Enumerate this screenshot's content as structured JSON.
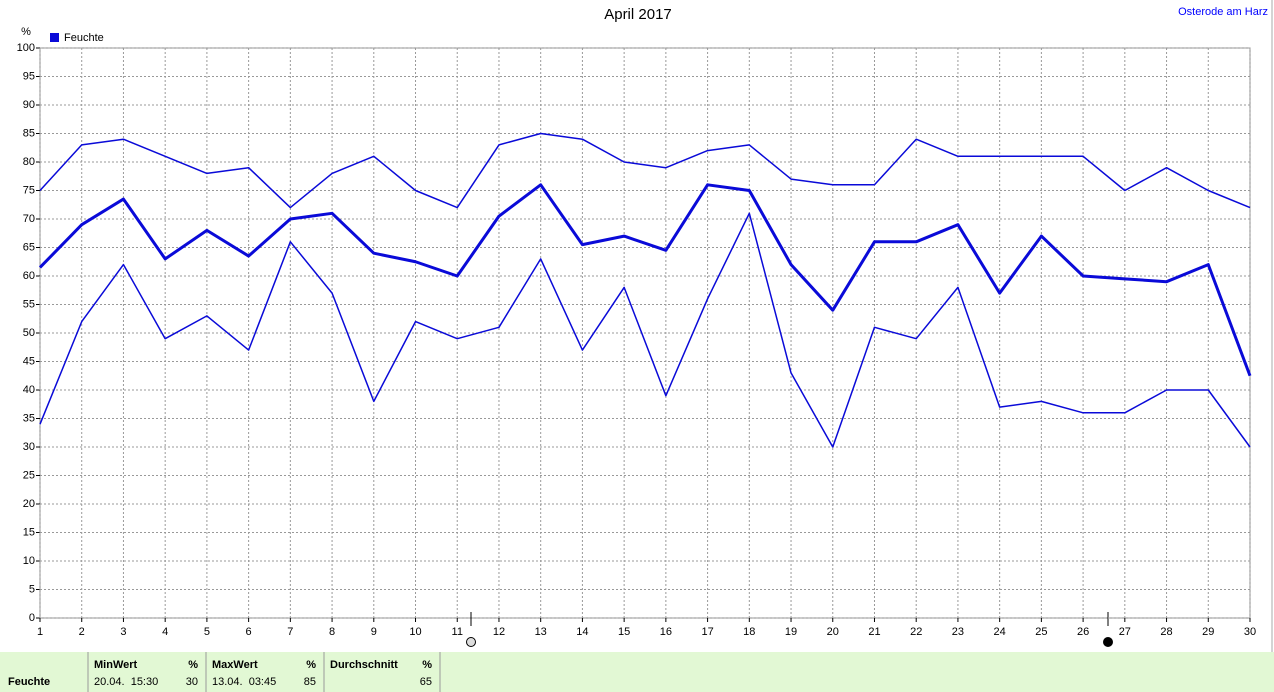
{
  "chart_data": {
    "type": "line",
    "title": "April 2017",
    "location": "Osterode am Harz",
    "y_unit": "%",
    "x": [
      1,
      2,
      3,
      4,
      5,
      6,
      7,
      8,
      9,
      10,
      11,
      12,
      13,
      14,
      15,
      16,
      17,
      18,
      19,
      20,
      21,
      22,
      23,
      24,
      25,
      26,
      27,
      28,
      29,
      30
    ],
    "xlim": [
      1,
      30
    ],
    "xticks": [
      1,
      2,
      3,
      4,
      5,
      6,
      7,
      8,
      9,
      10,
      11,
      12,
      13,
      14,
      15,
      16,
      17,
      18,
      19,
      20,
      21,
      22,
      23,
      24,
      25,
      26,
      27,
      28,
      29,
      30
    ],
    "ylim": [
      0,
      100
    ],
    "yticks": [
      0,
      5,
      10,
      15,
      20,
      25,
      30,
      35,
      40,
      45,
      50,
      55,
      60,
      65,
      70,
      75,
      80,
      85,
      90,
      95,
      100
    ],
    "grid": true,
    "series": [
      {
        "name": "Feuchte",
        "color": "#0a0ad8",
        "line_width": 3,
        "values": [
          61.5,
          69,
          73.5,
          63,
          68,
          63.5,
          70,
          71,
          64,
          62.5,
          60,
          70.5,
          76,
          65.5,
          67,
          64.5,
          76,
          75,
          62,
          54,
          66,
          66,
          69,
          57,
          67,
          60,
          59.5,
          59,
          62,
          42.5
        ]
      },
      {
        "color": "#0a0ad8",
        "line_width": 1.5,
        "values": [
          75,
          83,
          84,
          81,
          78,
          79,
          72,
          78,
          81,
          75,
          72,
          83,
          85,
          84,
          80,
          79,
          82,
          83,
          77,
          76,
          76,
          84,
          81,
          81,
          81,
          81,
          75,
          79,
          75,
          72
        ]
      },
      {
        "color": "#0a0ad8",
        "line_width": 1.5,
        "values": [
          34,
          52,
          62,
          49,
          53,
          47,
          66,
          57,
          38,
          52,
          49,
          51,
          63,
          47,
          58,
          39,
          56,
          71,
          43,
          30,
          51,
          49,
          58,
          37,
          38,
          36,
          36,
          40,
          40,
          30
        ]
      }
    ]
  },
  "summary": {
    "label": "Feuchte",
    "columns": [
      {
        "header": "MinWert",
        "unit": "%",
        "time": "20.04.  15:30",
        "value": 30
      },
      {
        "header": "MaxWert",
        "unit": "%",
        "time": "13.04.  03:45",
        "value": 85
      },
      {
        "header": "Durchschnitt",
        "unit": "%",
        "value": 65
      }
    ]
  }
}
